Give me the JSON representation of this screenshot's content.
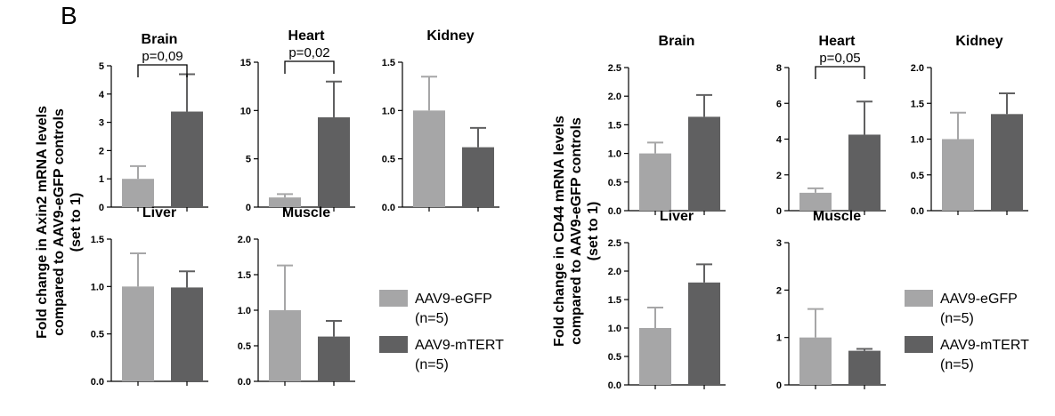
{
  "panel_label": "B",
  "colors": {
    "egfp": "#a6a6a7",
    "mtert": "#606061",
    "axis": "#000000"
  },
  "legend": [
    {
      "label": "AAV9-eGFP",
      "n": "(n=5)",
      "color": "#a6a6a7"
    },
    {
      "label": "AAV9-mTERT",
      "n": "(n=5)",
      "color": "#606061"
    }
  ],
  "chart_data": [
    {
      "type": "bar",
      "group": "Axin2",
      "title": "Brain",
      "ylabel": "Fold change in Axin2 mRNA levels compared to AAV9-eGFP controls (set to 1)",
      "categories": [
        "AAV9-eGFP",
        "AAV9-mTERT"
      ],
      "values": [
        1.0,
        3.38
      ],
      "errors": [
        0.45,
        1.32
      ],
      "ylim": [
        0,
        5
      ],
      "yticks": [
        "0",
        "1",
        "2",
        "3",
        "4",
        "5"
      ],
      "annotation": "p=0,09"
    },
    {
      "type": "bar",
      "group": "Axin2",
      "title": "Heart",
      "categories": [
        "AAV9-eGFP",
        "AAV9-mTERT"
      ],
      "values": [
        1.0,
        9.3
      ],
      "errors": [
        0.35,
        3.7
      ],
      "ylim": [
        0,
        15
      ],
      "yticks": [
        "0",
        "5",
        "10",
        "15"
      ],
      "annotation": "p=0,02"
    },
    {
      "type": "bar",
      "group": "Axin2",
      "title": "Kidney",
      "categories": [
        "AAV9-eGFP",
        "AAV9-mTERT"
      ],
      "values": [
        1.0,
        0.62
      ],
      "errors": [
        0.35,
        0.2
      ],
      "ylim": [
        0,
        1.5
      ],
      "yticks": [
        "0.0",
        "0.5",
        "1.0",
        "1.5"
      ]
    },
    {
      "type": "bar",
      "group": "Axin2",
      "title": "Liver",
      "categories": [
        "AAV9-eGFP",
        "AAV9-mTERT"
      ],
      "values": [
        1.0,
        0.99
      ],
      "errors": [
        0.35,
        0.17
      ],
      "ylim": [
        0,
        1.5
      ],
      "yticks": [
        "0.0",
        "0.5",
        "1.0",
        "1.5"
      ]
    },
    {
      "type": "bar",
      "group": "Axin2",
      "title": "Muscle",
      "categories": [
        "AAV9-eGFP",
        "AAV9-mTERT"
      ],
      "values": [
        1.0,
        0.63
      ],
      "errors": [
        0.63,
        0.22
      ],
      "ylim": [
        0,
        2.0
      ],
      "yticks": [
        "0.0",
        "0.5",
        "1.0",
        "1.5",
        "2.0"
      ]
    },
    {
      "type": "bar",
      "group": "CD44",
      "title": "Brain",
      "ylabel": "Fold change in CD44 mRNA levels compared to AAV9-eGFP controls (set to 1)",
      "categories": [
        "AAV9-eGFP",
        "AAV9-mTERT"
      ],
      "values": [
        1.0,
        1.64
      ],
      "errors": [
        0.19,
        0.38
      ],
      "ylim": [
        0,
        2.5
      ],
      "yticks": [
        "0.0",
        "0.5",
        "1.0",
        "1.5",
        "2.0",
        "2.5"
      ]
    },
    {
      "type": "bar",
      "group": "CD44",
      "title": "Heart",
      "categories": [
        "AAV9-eGFP",
        "AAV9-mTERT"
      ],
      "values": [
        1.0,
        4.25
      ],
      "errors": [
        0.25,
        1.85
      ],
      "ylim": [
        0,
        8
      ],
      "yticks": [
        "0",
        "2",
        "4",
        "6",
        "8"
      ],
      "annotation": "p=0,05"
    },
    {
      "type": "bar",
      "group": "CD44",
      "title": "Kidney",
      "categories": [
        "AAV9-eGFP",
        "AAV9-mTERT"
      ],
      "values": [
        1.0,
        1.35
      ],
      "errors": [
        0.37,
        0.29
      ],
      "ylim": [
        0,
        2.0
      ],
      "yticks": [
        "0.0",
        "0.5",
        "1.0",
        "1.5",
        "2.0"
      ]
    },
    {
      "type": "bar",
      "group": "CD44",
      "title": "Liver",
      "categories": [
        "AAV9-eGFP",
        "AAV9-mTERT"
      ],
      "values": [
        1.0,
        1.8
      ],
      "errors": [
        0.36,
        0.32
      ],
      "ylim": [
        0,
        2.5
      ],
      "yticks": [
        "0.0",
        "0.5",
        "1.0",
        "1.5",
        "2.0",
        "2.5"
      ]
    },
    {
      "type": "bar",
      "group": "CD44",
      "title": "Muscle",
      "categories": [
        "AAV9-eGFP",
        "AAV9-mTERT"
      ],
      "values": [
        1.0,
        0.72
      ],
      "errors": [
        0.6,
        0.04
      ],
      "ylim": [
        0,
        3
      ],
      "yticks": [
        "0",
        "1",
        "2",
        "3"
      ]
    }
  ]
}
